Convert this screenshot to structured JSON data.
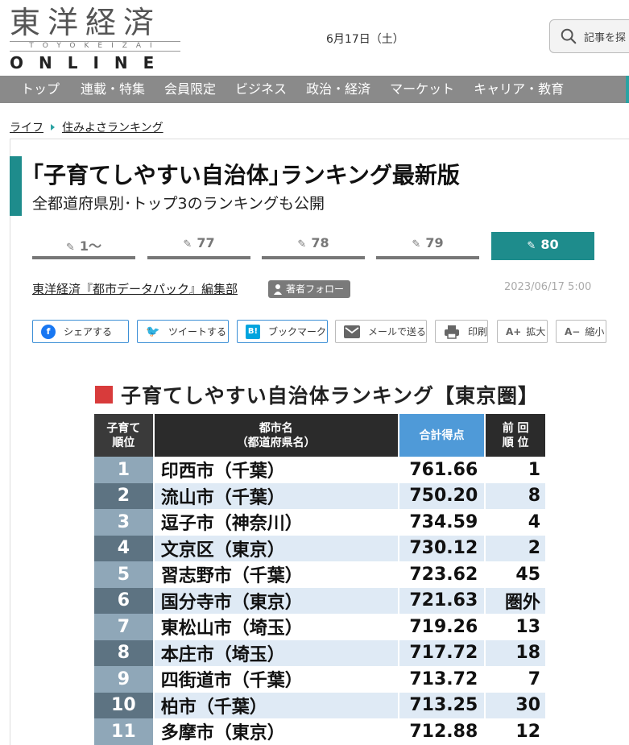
{
  "header": {
    "logo_kanji": "東洋経済",
    "logo_sub": "TOYOKEIZAI",
    "logo_online": "ONLINE",
    "date": "6月17日（土）",
    "search_placeholder": "記事を探"
  },
  "nav": {
    "items": [
      "トップ",
      "連載・特集",
      "会員限定",
      "ビジネス",
      "政治・経済",
      "マーケット",
      "キャリア・教育"
    ]
  },
  "breadcrumb": {
    "items": [
      "ライフ",
      "住みよさランキング"
    ]
  },
  "article": {
    "title": "｢子育てしやすい自治体｣ランキング最新版",
    "subtitle": "全都道府県別･トップ3のランキングも公開",
    "pager": [
      "1～",
      "77",
      "78",
      "79",
      "80"
    ],
    "active_page": "80",
    "author": "東洋経済『都市データパック』編集部",
    "follow_label": "著者フォロー",
    "pubdate": "2023/06/17 5:00"
  },
  "share": {
    "facebook": "シェアする",
    "twitter": "ツイートする",
    "bookmark": "ブックマーク",
    "mail": "メールで送る",
    "print": "印刷",
    "zoom_in": "拡大",
    "zoom_out": "縮小"
  },
  "ranking": {
    "title": "子育てしやすい自治体ランキング【東京圏】",
    "headers": {
      "rank_l1": "子育て",
      "rank_l2": "順位",
      "city_l1": "都市名",
      "city_l2": "（都道府県名）",
      "score": "合計得点",
      "prev_l1": "前 回",
      "prev_l2": "順 位"
    },
    "rows": [
      {
        "rank": "1",
        "city": "印西市（千葉）",
        "score": "761.66",
        "prev": "1"
      },
      {
        "rank": "2",
        "city": "流山市（千葉）",
        "score": "750.20",
        "prev": "8"
      },
      {
        "rank": "3",
        "city": "逗子市（神奈川）",
        "score": "734.59",
        "prev": "4"
      },
      {
        "rank": "4",
        "city": "文京区（東京）",
        "score": "730.12",
        "prev": "2"
      },
      {
        "rank": "5",
        "city": "習志野市（千葉）",
        "score": "723.62",
        "prev": "45"
      },
      {
        "rank": "6",
        "city": "国分寺市（東京）",
        "score": "721.63",
        "prev": "圏外"
      },
      {
        "rank": "7",
        "city": "東松山市（埼玉）",
        "score": "719.26",
        "prev": "13"
      },
      {
        "rank": "8",
        "city": "本庄市（埼玉）",
        "score": "717.72",
        "prev": "18"
      },
      {
        "rank": "9",
        "city": "四街道市（千葉）",
        "score": "713.72",
        "prev": "7"
      },
      {
        "rank": "10",
        "city": "柏市（千葉）",
        "score": "713.25",
        "prev": "30"
      },
      {
        "rank": "11",
        "city": "多摩市（東京）",
        "score": "712.88",
        "prev": "12"
      }
    ]
  },
  "colors": {
    "accent": "#1e8c8c",
    "nav_bg": "#8a8a8a",
    "score_header": "#4f9ad8",
    "rank_square": "#d83b3b"
  }
}
